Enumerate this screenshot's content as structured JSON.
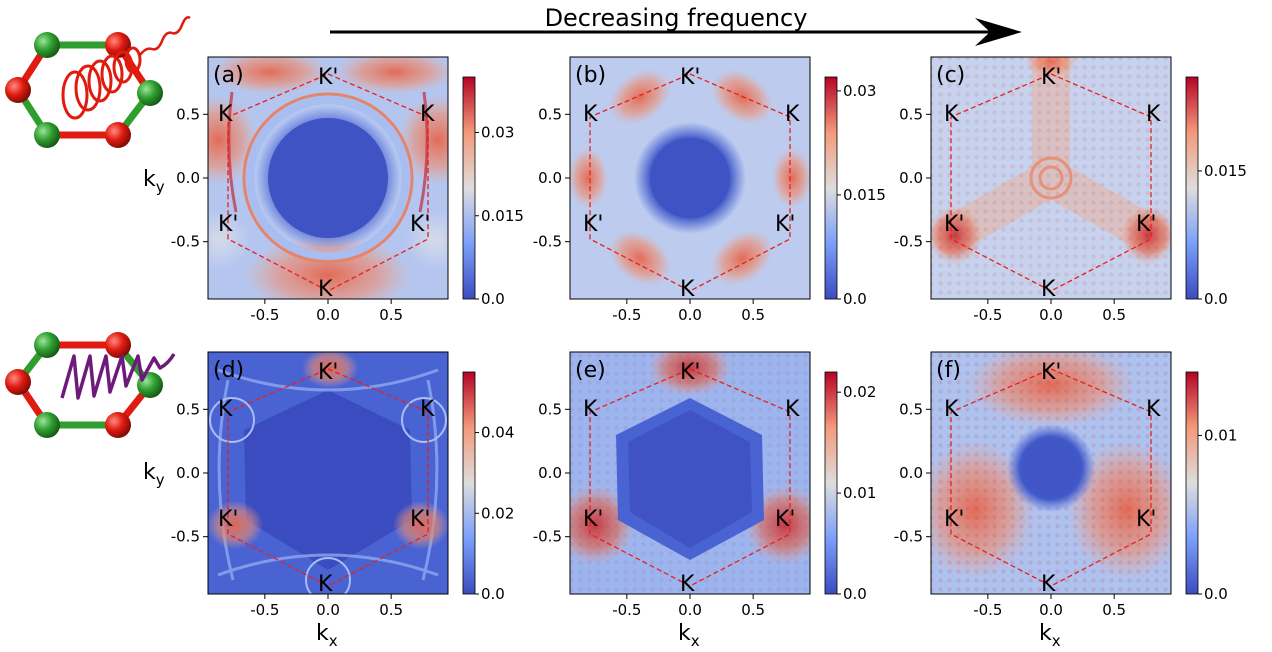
{
  "title": "Decreasing frequency",
  "xlabel_main": "k",
  "xlabel_sub": "x",
  "ylabel_main": "k",
  "ylabel_sub": "y",
  "colors": {
    "low": "#3b4cc0",
    "mid": "#dddddd",
    "high": "#b40426",
    "hexagon": "#e8201a"
  },
  "chart_data": [
    {
      "type": "heatmap",
      "panel_label": "(a)",
      "xlim": [
        -0.95,
        0.95
      ],
      "ylim": [
        -0.95,
        0.95
      ],
      "xticks": [
        "-0.5",
        "0.0",
        "0.5"
      ],
      "yticks": [
        "0.5",
        "0.0",
        "-0.5"
      ],
      "colorbar": {
        "min": 0.0,
        "max": 0.04,
        "ticks": [
          {
            "v": 0.03,
            "label": "0.03"
          },
          {
            "v": 0.015,
            "label": "0.015"
          },
          {
            "v": 0.0,
            "label": "0.0"
          }
        ]
      },
      "hexagon_labels": {
        "top": "K'",
        "upper_left": "K",
        "upper_right": "K",
        "lower_left": "K'",
        "lower_right": "K'",
        "bottom": "K"
      }
    },
    {
      "type": "heatmap",
      "panel_label": "(b)",
      "xlim": [
        -0.95,
        0.95
      ],
      "ylim": [
        -0.95,
        0.95
      ],
      "xticks": [
        "-0.5",
        "0.0",
        "0.5"
      ],
      "yticks": [
        "0.5",
        "0.0",
        "-0.5"
      ],
      "colorbar": {
        "min": 0.0,
        "max": 0.032,
        "ticks": [
          {
            "v": 0.03,
            "label": "0.03"
          },
          {
            "v": 0.015,
            "label": "0.015"
          },
          {
            "v": 0.0,
            "label": "0.0"
          }
        ]
      },
      "hexagon_labels": {
        "top": "K'",
        "upper_left": "K",
        "upper_right": "K",
        "lower_left": "K'",
        "lower_right": "K'",
        "bottom": "K"
      }
    },
    {
      "type": "heatmap",
      "panel_label": "(c)",
      "xlim": [
        -0.95,
        0.95
      ],
      "ylim": [
        -0.95,
        0.95
      ],
      "xticks": [
        "-0.5",
        "0.0",
        "0.5"
      ],
      "yticks": [
        "0.5",
        "0.0",
        "-0.5"
      ],
      "colorbar": {
        "min": 0.0,
        "max": 0.026,
        "ticks": [
          {
            "v": 0.015,
            "label": "0.015"
          },
          {
            "v": 0.0,
            "label": "0.0"
          }
        ]
      },
      "hexagon_labels": {
        "top": "K'",
        "upper_left": "K",
        "upper_right": "K",
        "lower_left": "K'",
        "lower_right": "K'",
        "bottom": "K"
      }
    },
    {
      "type": "heatmap",
      "panel_label": "(d)",
      "xlim": [
        -0.95,
        0.95
      ],
      "ylim": [
        -0.95,
        0.95
      ],
      "xticks": [
        "-0.5",
        "0.0",
        "0.5"
      ],
      "yticks": [
        "0.5",
        "0.0",
        "-0.5"
      ],
      "colorbar": {
        "min": 0.0,
        "max": 0.055,
        "ticks": [
          {
            "v": 0.04,
            "label": "0.04"
          },
          {
            "v": 0.02,
            "label": "0.02"
          },
          {
            "v": 0.0,
            "label": "0.0"
          }
        ]
      },
      "hexagon_labels": {
        "top": "K'",
        "upper_left": "K",
        "upper_right": "K",
        "lower_left": "K'",
        "lower_right": "K'",
        "bottom": "K"
      }
    },
    {
      "type": "heatmap",
      "panel_label": "(e)",
      "xlim": [
        -0.95,
        0.95
      ],
      "ylim": [
        -0.95,
        0.95
      ],
      "xticks": [
        "-0.5",
        "0.0",
        "0.5"
      ],
      "yticks": [
        "0.5",
        "0.0",
        "-0.5"
      ],
      "colorbar": {
        "min": 0.0,
        "max": 0.022,
        "ticks": [
          {
            "v": 0.02,
            "label": "0.02"
          },
          {
            "v": 0.01,
            "label": "0.01"
          },
          {
            "v": 0.0,
            "label": "0.0"
          }
        ]
      },
      "hexagon_labels": {
        "top": "K'",
        "upper_left": "K",
        "upper_right": "K",
        "lower_left": "K'",
        "lower_right": "K'",
        "bottom": "K"
      }
    },
    {
      "type": "heatmap",
      "panel_label": "(f)",
      "xlim": [
        -0.95,
        0.95
      ],
      "ylim": [
        -0.95,
        0.95
      ],
      "xticks": [
        "-0.5",
        "0.0",
        "0.5"
      ],
      "yticks": [
        "0.5",
        "0.0",
        "-0.5"
      ],
      "colorbar": {
        "min": 0.0,
        "max": 0.014,
        "ticks": [
          {
            "v": 0.01,
            "label": "0.01"
          },
          {
            "v": 0.0,
            "label": "0.0"
          }
        ]
      },
      "hexagon_labels": {
        "top": "K'",
        "upper_left": "K",
        "upper_right": "K",
        "lower_left": "K'",
        "lower_right": "K'",
        "bottom": "K"
      }
    }
  ]
}
